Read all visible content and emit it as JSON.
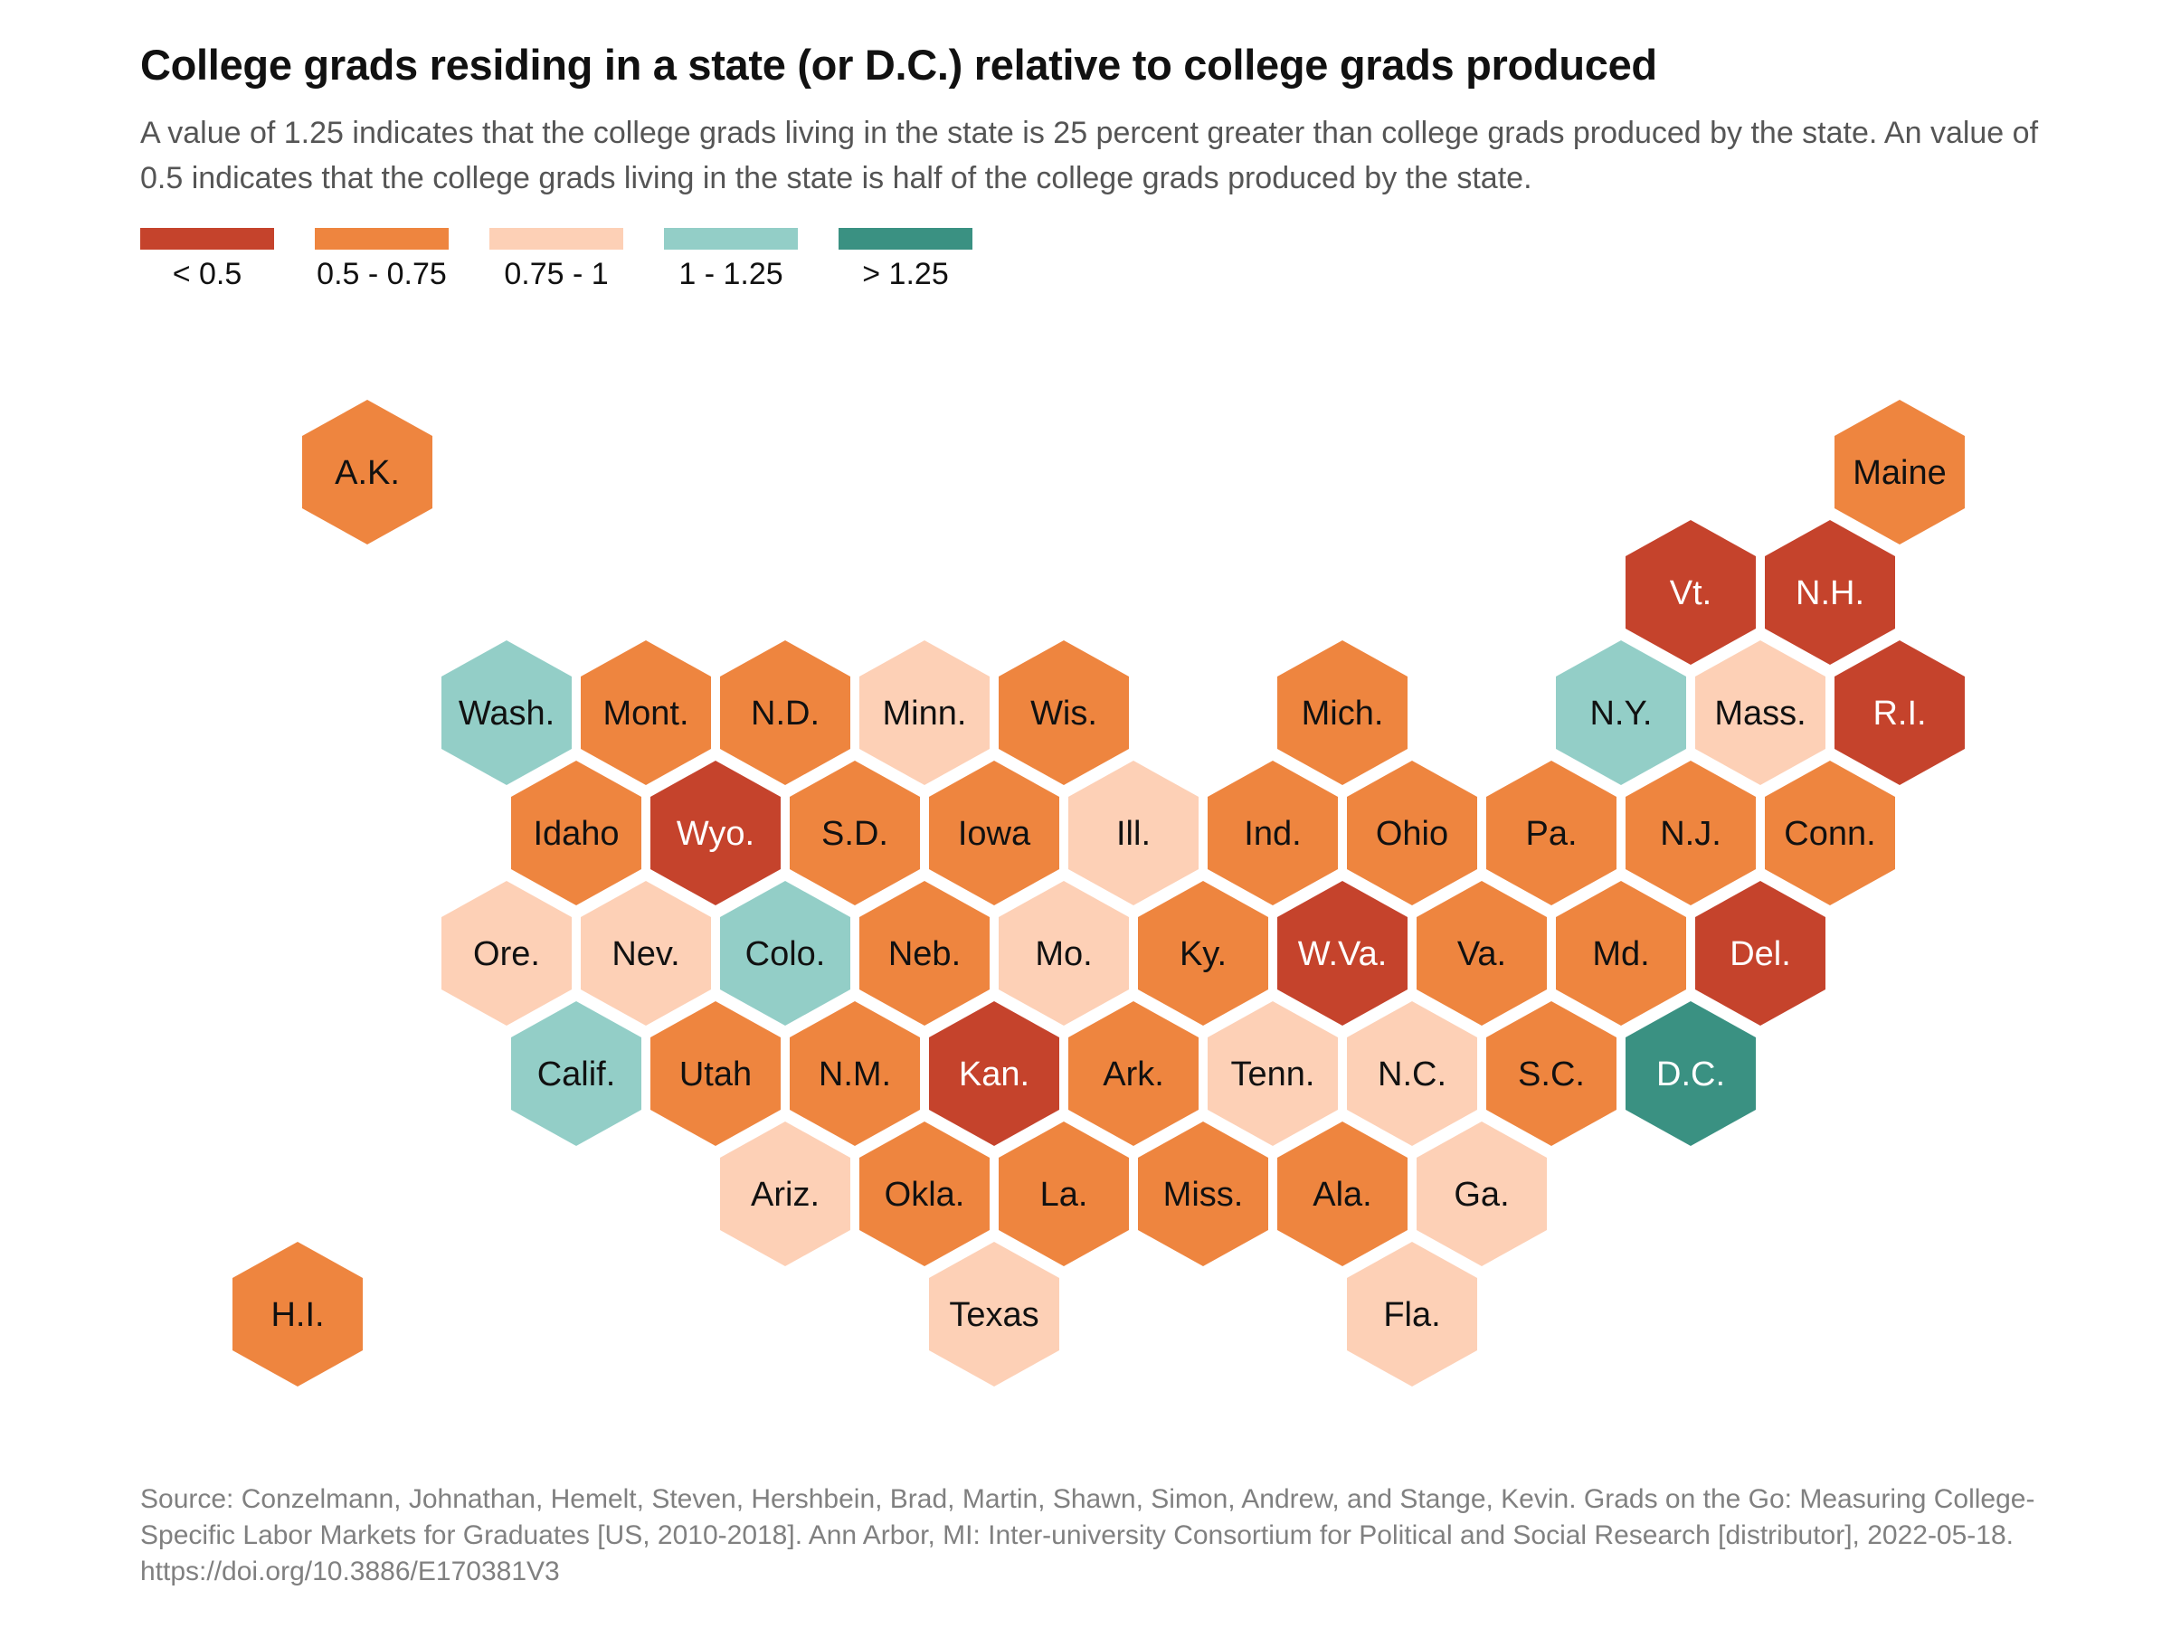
{
  "title": "College grads residing in a state (or D.C.) relative to college grads produced",
  "subtitle": "A value of 1.25 indicates that the college grads living in the state is 25 percent greater than college grads produced by the state. An value of 0.5 indicates that the college grads living in the state is half of the college grads produced by the state.",
  "legend": [
    {
      "label": "< 0.5",
      "color": "#c5432c"
    },
    {
      "label": "0.5 - 0.75",
      "color": "#ee853f"
    },
    {
      "label": "0.75 - 1",
      "color": "#fdd0b6"
    },
    {
      "label": "1 - 1.25",
      "color": "#93cec7"
    },
    {
      "label": "> 1.25",
      "color": "#3a9182"
    }
  ],
  "chart_data": {
    "type": "hex tile map",
    "legend_placement": "top-left",
    "categories": [
      "< 0.5",
      "0.5 - 0.75",
      "0.75 - 1",
      "1 - 1.25",
      "> 1.25"
    ],
    "tiles": [
      {
        "label": "A.K.",
        "category": 1,
        "row": 0,
        "col": 0
      },
      {
        "label": "Maine",
        "category": 1,
        "row": 0,
        "col": 11
      },
      {
        "label": "Vt.",
        "category": 0,
        "row": 1,
        "col": 9.5
      },
      {
        "label": "N.H.",
        "category": 0,
        "row": 1,
        "col": 10.5
      },
      {
        "label": "Wash.",
        "category": 3,
        "row": 2,
        "col": 1
      },
      {
        "label": "Mont.",
        "category": 1,
        "row": 2,
        "col": 2
      },
      {
        "label": "N.D.",
        "category": 1,
        "row": 2,
        "col": 3
      },
      {
        "label": "Minn.",
        "category": 2,
        "row": 2,
        "col": 4
      },
      {
        "label": "Wis.",
        "category": 1,
        "row": 2,
        "col": 5
      },
      {
        "label": "Mich.",
        "category": 1,
        "row": 2,
        "col": 7
      },
      {
        "label": "N.Y.",
        "category": 3,
        "row": 2,
        "col": 9
      },
      {
        "label": "Mass.",
        "category": 2,
        "row": 2,
        "col": 10
      },
      {
        "label": "R.I.",
        "category": 0,
        "row": 2,
        "col": 11
      },
      {
        "label": "Idaho",
        "category": 1,
        "row": 3,
        "col": 1.5
      },
      {
        "label": "Wyo.",
        "category": 0,
        "row": 3,
        "col": 2.5
      },
      {
        "label": "S.D.",
        "category": 1,
        "row": 3,
        "col": 3.5
      },
      {
        "label": "Iowa",
        "category": 1,
        "row": 3,
        "col": 4.5
      },
      {
        "label": "Ill.",
        "category": 2,
        "row": 3,
        "col": 5.5
      },
      {
        "label": "Ind.",
        "category": 1,
        "row": 3,
        "col": 6.5
      },
      {
        "label": "Ohio",
        "category": 1,
        "row": 3,
        "col": 7.5
      },
      {
        "label": "Pa.",
        "category": 1,
        "row": 3,
        "col": 8.5
      },
      {
        "label": "N.J.",
        "category": 1,
        "row": 3,
        "col": 9.5
      },
      {
        "label": "Conn.",
        "category": 1,
        "row": 3,
        "col": 10.5
      },
      {
        "label": "Ore.",
        "category": 2,
        "row": 4,
        "col": 1
      },
      {
        "label": "Nev.",
        "category": 2,
        "row": 4,
        "col": 2
      },
      {
        "label": "Colo.",
        "category": 3,
        "row": 4,
        "col": 3
      },
      {
        "label": "Neb.",
        "category": 1,
        "row": 4,
        "col": 4
      },
      {
        "label": "Mo.",
        "category": 2,
        "row": 4,
        "col": 5
      },
      {
        "label": "Ky.",
        "category": 1,
        "row": 4,
        "col": 6
      },
      {
        "label": "W.Va.",
        "category": 0,
        "row": 4,
        "col": 7
      },
      {
        "label": "Va.",
        "category": 1,
        "row": 4,
        "col": 8
      },
      {
        "label": "Md.",
        "category": 1,
        "row": 4,
        "col": 9
      },
      {
        "label": "Del.",
        "category": 0,
        "row": 4,
        "col": 10
      },
      {
        "label": "Calif.",
        "category": 3,
        "row": 5,
        "col": 1.5
      },
      {
        "label": "Utah",
        "category": 1,
        "row": 5,
        "col": 2.5
      },
      {
        "label": "N.M.",
        "category": 1,
        "row": 5,
        "col": 3.5
      },
      {
        "label": "Kan.",
        "category": 0,
        "row": 5,
        "col": 4.5
      },
      {
        "label": "Ark.",
        "category": 1,
        "row": 5,
        "col": 5.5
      },
      {
        "label": "Tenn.",
        "category": 2,
        "row": 5,
        "col": 6.5
      },
      {
        "label": "N.C.",
        "category": 2,
        "row": 5,
        "col": 7.5
      },
      {
        "label": "S.C.",
        "category": 1,
        "row": 5,
        "col": 8.5
      },
      {
        "label": "D.C.",
        "category": 4,
        "row": 5,
        "col": 9.5
      },
      {
        "label": "Ariz.",
        "category": 2,
        "row": 6,
        "col": 3
      },
      {
        "label": "Okla.",
        "category": 1,
        "row": 6,
        "col": 4
      },
      {
        "label": "La.",
        "category": 1,
        "row": 6,
        "col": 5
      },
      {
        "label": "Miss.",
        "category": 1,
        "row": 6,
        "col": 6
      },
      {
        "label": "Ala.",
        "category": 1,
        "row": 6,
        "col": 7
      },
      {
        "label": "Ga.",
        "category": 2,
        "row": 6,
        "col": 8
      },
      {
        "label": "H.I.",
        "category": -0.5,
        "row": 7,
        "col": -0.5
      },
      {
        "label": "Texas",
        "category": 2,
        "row": 7,
        "col": 4.5
      },
      {
        "label": "Fla.",
        "category": 2,
        "row": 7,
        "col": 7.5
      }
    ]
  },
  "source": "Source: Conzelmann, Johnathan, Hemelt, Steven, Hershbein, Brad, Martin, Shawn, Simon, Andrew, and Stange, Kevin. Grads on the Go: Measuring College-Specific Labor Markets for Graduates [US, 2010-2018]. Ann Arbor, MI: Inter-university Consortium for Political and Social Research [distributor], 2022-05-18. https://doi.org/10.3886/E170381V3"
}
